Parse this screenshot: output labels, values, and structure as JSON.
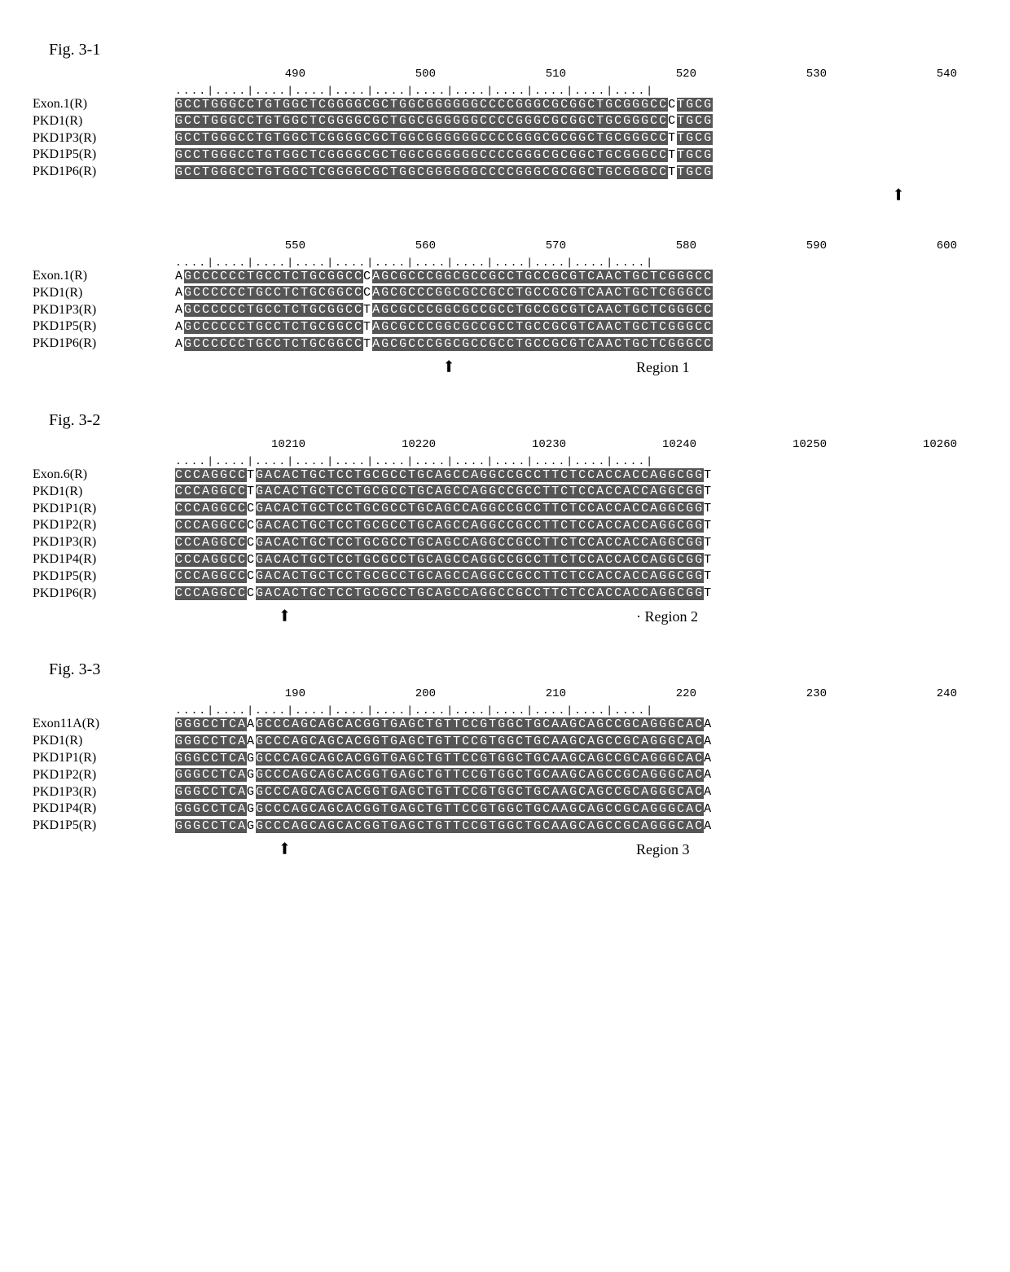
{
  "fig31": {
    "label": "Fig. 3-1",
    "block_a": {
      "positions": [
        "490",
        "500",
        "510",
        "520",
        "530",
        "540"
      ],
      "ruler": "....|....|....|....|....|....|....|....|....|....|....|....|",
      "rows": [
        {
          "name": "Exon.1(R)",
          "segs": [
            {
              "t": "GCCTGGGCCTGTGGCTCGGGGCGCTGGCGGGGGGCCCCGGGCGCGGCTGCGGGCC",
              "h": true
            },
            {
              "t": "C",
              "h": false
            },
            {
              "t": "TGCG",
              "h": true
            }
          ]
        },
        {
          "name": "PKD1(R)",
          "segs": [
            {
              "t": "GCCTGGGCCTGTGGCTCGGGGCGCTGGCGGGGGGCCCCGGGCGCGGCTGCGGGCC",
              "h": true
            },
            {
              "t": "C",
              "h": false
            },
            {
              "t": "TGCG",
              "h": true
            }
          ]
        },
        {
          "name": "PKD1P3(R)",
          "segs": [
            {
              "t": "GCCTGGGCCTGTGGCTCGGGGCGCTGGCGGGGGGCCCCGGGCGCGGCTGCGGGCC",
              "h": true
            },
            {
              "t": "T",
              "h": false
            },
            {
              "t": "TGCG",
              "h": true
            }
          ]
        },
        {
          "name": "PKD1P5(R)",
          "segs": [
            {
              "t": "GCCTGGGCCTGTGGCTCGGGGCGCTGGCGGGGGGCCCCGGGCGCGGCTGCGGGCC",
              "h": true
            },
            {
              "t": "T",
              "h": false
            },
            {
              "t": "TGCG",
              "h": true
            }
          ]
        },
        {
          "name": "PKD1P6(R)",
          "segs": [
            {
              "t": "GCCTGGGCCTGTGGCTCGGGGCGCTGGCGGGGGGCCCCGGGCGCGGCTGCGGGCC",
              "h": true
            },
            {
              "t": "T",
              "h": false
            },
            {
              "t": "TGCG",
              "h": true
            }
          ]
        }
      ],
      "arrow_col_ratio": 0.935
    },
    "block_b": {
      "positions": [
        "550",
        "560",
        "570",
        "580",
        "590",
        "600"
      ],
      "ruler": "....|....|....|....|....|....|....|....|....|....|....|....|",
      "rows": [
        {
          "name": "Exon.1(R)",
          "segs": [
            {
              "t": "A",
              "h": false
            },
            {
              "t": "GCCCCCCTGCCTCTGCGGCC",
              "h": true
            },
            {
              "t": "C",
              "h": false
            },
            {
              "t": "AGCGCCCGGCGCCGCCTGCCGCGTCAACTGCTCGGGCC",
              "h": true
            }
          ]
        },
        {
          "name": "PKD1(R)",
          "segs": [
            {
              "t": "A",
              "h": false
            },
            {
              "t": "GCCCCCCTGCCTCTGCGGCC",
              "h": true
            },
            {
              "t": "C",
              "h": false
            },
            {
              "t": "AGCGCCCGGCGCCGCCTGCCGCGTCAACTGCTCGGGCC",
              "h": true
            }
          ]
        },
        {
          "name": "PKD1P3(R)",
          "segs": [
            {
              "t": "A",
              "h": false
            },
            {
              "t": "GCCCCCCTGCCTCTGCGGCC",
              "h": true
            },
            {
              "t": "T",
              "h": false
            },
            {
              "t": "AGCGCCCGGCGCCGCCTGCCGCGTCAACTGCTCGGGCC",
              "h": true
            }
          ]
        },
        {
          "name": "PKD1P5(R)",
          "segs": [
            {
              "t": "A",
              "h": false
            },
            {
              "t": "GCCCCCCTGCCTCTGCGGCC",
              "h": true
            },
            {
              "t": "T",
              "h": false
            },
            {
              "t": "AGCGCCCGGCGCCGCCTGCCGCGTCAACTGCTCGGGCC",
              "h": true
            }
          ]
        },
        {
          "name": "PKD1P6(R)",
          "segs": [
            {
              "t": "A",
              "h": false
            },
            {
              "t": "GCCCCCCTGCCTCTGCGGCC",
              "h": true
            },
            {
              "t": "T",
              "h": false
            },
            {
              "t": "AGCGCCCGGCGCCGCCTGCCGCGTCAACTGCTCGGGCC",
              "h": true
            }
          ]
        }
      ],
      "arrow_col_ratio": 0.36,
      "region_label": "Region 1"
    }
  },
  "fig32": {
    "label": "Fig. 3-2",
    "block": {
      "positions": [
        "10210",
        "10220",
        "10230",
        "10240",
        "10250",
        "10260"
      ],
      "ruler": "....|....|....|....|....|....|....|....|....|....|....|....|",
      "rows": [
        {
          "name": "Exon.6(R)",
          "segs": [
            {
              "t": "CCCAGGCC",
              "h": true
            },
            {
              "t": "T",
              "h": false
            },
            {
              "t": "GACACTGCTCCTGCGCCTGCAGCCAGGCCGCCTTCTCCACCACCAGGCGG",
              "h": true
            },
            {
              "t": "T",
              "h": false
            }
          ]
        },
        {
          "name": "PKD1(R)",
          "segs": [
            {
              "t": "CCCAGGCC",
              "h": true
            },
            {
              "t": "T",
              "h": false
            },
            {
              "t": "GACACTGCTCCTGCGCCTGCAGCCAGGCCGCCTTCTCCACCACCAGGCGG",
              "h": true
            },
            {
              "t": "T",
              "h": false
            }
          ]
        },
        {
          "name": "PKD1P1(R)",
          "segs": [
            {
              "t": "CCCAGGCC",
              "h": true
            },
            {
              "t": "C",
              "h": false
            },
            {
              "t": "GACACTGCTCCTGCGCCTGCAGCCAGGCCGCCTTCTCCACCACCAGGCGG",
              "h": true
            },
            {
              "t": "T",
              "h": false
            }
          ]
        },
        {
          "name": "PKD1P2(R)",
          "segs": [
            {
              "t": "CCCAGGCC",
              "h": true
            },
            {
              "t": "C",
              "h": false
            },
            {
              "t": "GACACTGCTCCTGCGCCTGCAGCCAGGCCGCCTTCTCCACCACCAGGCGG",
              "h": true
            },
            {
              "t": "T",
              "h": false
            }
          ]
        },
        {
          "name": "PKD1P3(R)",
          "segs": [
            {
              "t": "CCCAGGCC",
              "h": true
            },
            {
              "t": "C",
              "h": false
            },
            {
              "t": "GACACTGCTCCTGCGCCTGCAGCCAGGCCGCCTTCTCCACCACCAGGCGG",
              "h": true
            },
            {
              "t": "T",
              "h": false
            }
          ]
        },
        {
          "name": "PKD1P4(R)",
          "segs": [
            {
              "t": "CCCAGGCC",
              "h": true
            },
            {
              "t": "C",
              "h": false
            },
            {
              "t": "GACACTGCTCCTGCGCCTGCAGCCAGGCCGCCTTCTCCACCACCAGGCGG",
              "h": true
            },
            {
              "t": "T",
              "h": false
            }
          ]
        },
        {
          "name": "PKD1P5(R)",
          "segs": [
            {
              "t": "CCCAGGCC",
              "h": true
            },
            {
              "t": "C",
              "h": false
            },
            {
              "t": "GACACTGCTCCTGCGCCTGCAGCCAGGCCGCCTTCTCCACCACCAGGCGG",
              "h": true
            },
            {
              "t": "T",
              "h": false
            }
          ]
        },
        {
          "name": "PKD1P6(R)",
          "segs": [
            {
              "t": "CCCAGGCC",
              "h": true
            },
            {
              "t": "C",
              "h": false
            },
            {
              "t": "GACACTGCTCCTGCGCCTGCAGCCAGGCCGCCTTCTCCACCACCAGGCGG",
              "h": true
            },
            {
              "t": "T",
              "h": false
            }
          ]
        }
      ],
      "arrow_col_ratio": 0.15,
      "region_label": "· Region 2"
    }
  },
  "fig33": {
    "label": "Fig. 3-3",
    "block": {
      "positions": [
        "190",
        "200",
        "210",
        "220",
        "230",
        "240"
      ],
      "ruler": "....|....|....|....|....|....|....|....|....|....|....|....|",
      "rows": [
        {
          "name": "Exon11A(R)",
          "segs": [
            {
              "t": "GGGCCTCA",
              "h": true
            },
            {
              "t": "A",
              "h": false
            },
            {
              "t": "GCCCAGCAGCACGGTGAGCTGTTCCGTGGCTGCAAGCAGCCGCAGGGCAC",
              "h": true
            },
            {
              "t": "A",
              "h": false
            }
          ]
        },
        {
          "name": "PKD1(R)",
          "segs": [
            {
              "t": "GGGCCTCA",
              "h": true
            },
            {
              "t": "A",
              "h": false
            },
            {
              "t": "GCCCAGCAGCACGGTGAGCTGTTCCGTGGCTGCAAGCAGCCGCAGGGCAC",
              "h": true
            },
            {
              "t": "A",
              "h": false
            }
          ]
        },
        {
          "name": "PKD1P1(R)",
          "segs": [
            {
              "t": "GGGCCTCA",
              "h": true
            },
            {
              "t": "G",
              "h": false
            },
            {
              "t": "GCCCAGCAGCACGGTGAGCTGTTCCGTGGCTGCAAGCAGCCGCAGGGCAC",
              "h": true
            },
            {
              "t": "A",
              "h": false
            }
          ]
        },
        {
          "name": "PKD1P2(R)",
          "segs": [
            {
              "t": "GGGCCTCA",
              "h": true
            },
            {
              "t": "G",
              "h": false
            },
            {
              "t": "GCCCAGCAGCACGGTGAGCTGTTCCGTGGCTGCAAGCAGCCGCAGGGCAC",
              "h": true
            },
            {
              "t": "A",
              "h": false
            }
          ]
        },
        {
          "name": "PKD1P3(R)",
          "segs": [
            {
              "t": "GGGCCTCA",
              "h": true
            },
            {
              "t": "G",
              "h": false
            },
            {
              "t": "GCCCAGCAGCACGGTGAGCTGTTCCGTGGCTGCAAGCAGCCGCAGGGCAC",
              "h": true
            },
            {
              "t": "A",
              "h": false
            }
          ]
        },
        {
          "name": "PKD1P4(R)",
          "segs": [
            {
              "t": "GGGCCTCA",
              "h": true
            },
            {
              "t": "G",
              "h": false
            },
            {
              "t": "GCCCAGCAGCACGGTGAGCTGTTCCGTGGCTGCAAGCAGCCGCAGGGCAC",
              "h": true
            },
            {
              "t": "A",
              "h": false
            }
          ]
        },
        {
          "name": "PKD1P5(R)",
          "segs": [
            {
              "t": "GGGCCTCA",
              "h": true
            },
            {
              "t": "G",
              "h": false
            },
            {
              "t": "GCCCAGCAGCACGGTGAGCTGTTCCGTGGCTGCAAGCAGCCGCAGGGCAC",
              "h": true
            },
            {
              "t": "A",
              "h": false
            }
          ]
        }
      ],
      "arrow_col_ratio": 0.15,
      "region_label": "Region 3"
    }
  },
  "colors": {
    "highlight_bg": "#555555",
    "highlight_fg": "#ffffff",
    "normal_bg": "#ffffff",
    "normal_fg": "#000000"
  }
}
